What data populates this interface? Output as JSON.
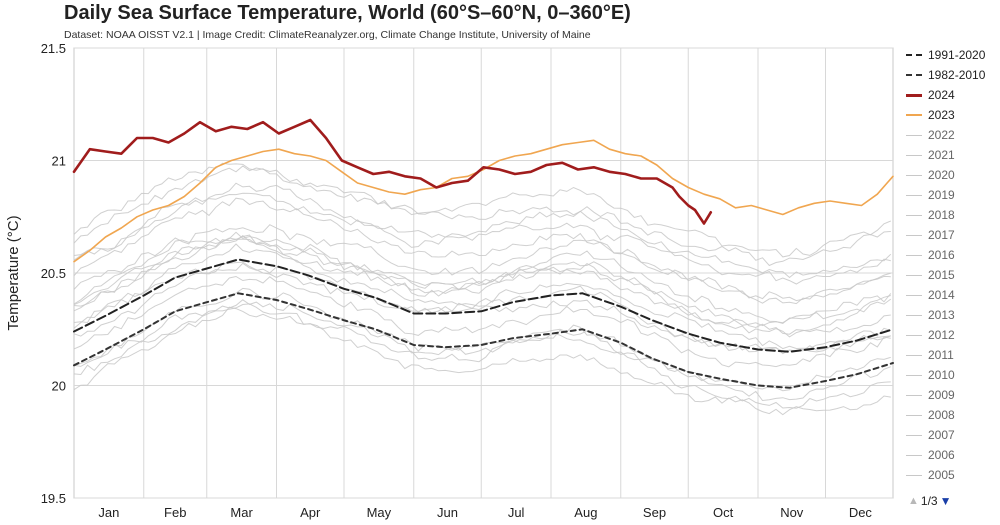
{
  "chart_data": {
    "type": "line",
    "title": "Daily Sea Surface Temperature, World (60°S–60°N, 0–360°E)",
    "subtitle": "Dataset: NOAA OISST V2.1 | Image Credit: ClimateReanalyzer.org, Climate Change Institute, University of Maine",
    "xlabel": "",
    "ylabel": "Temperature (°C)",
    "ylim": [
      19.5,
      21.5
    ],
    "yticks": [
      19.5,
      20,
      20.5,
      21,
      21.5
    ],
    "xlim": [
      1,
      365
    ],
    "months": [
      "Jan",
      "Feb",
      "Mar",
      "Apr",
      "May",
      "Jun",
      "Jul",
      "Aug",
      "Sep",
      "Oct",
      "Nov",
      "Dec"
    ],
    "grid": true,
    "legend_position": "right",
    "series": [
      {
        "name": "1991-2020",
        "style": "dashed-long",
        "color": "#222222",
        "x": [
          1,
          15,
          32,
          46,
          60,
          74,
          91,
          105,
          121,
          135,
          152,
          166,
          182,
          196,
          213,
          227,
          244,
          258,
          274,
          288,
          305,
          319,
          335,
          349,
          365
        ],
        "y": [
          20.24,
          20.31,
          20.4,
          20.48,
          20.52,
          20.56,
          20.53,
          20.49,
          20.43,
          20.39,
          20.32,
          20.32,
          20.33,
          20.37,
          20.4,
          20.41,
          20.35,
          20.29,
          20.23,
          20.19,
          20.16,
          20.15,
          20.17,
          20.2,
          20.25
        ]
      },
      {
        "name": "1982-2010",
        "style": "dashed-short",
        "color": "#333333",
        "x": [
          1,
          15,
          32,
          46,
          60,
          74,
          91,
          105,
          121,
          135,
          152,
          166,
          182,
          196,
          213,
          227,
          244,
          258,
          274,
          288,
          305,
          319,
          335,
          349,
          365
        ],
        "y": [
          20.09,
          20.16,
          20.25,
          20.33,
          20.37,
          20.41,
          20.38,
          20.34,
          20.29,
          20.25,
          20.18,
          20.17,
          20.18,
          20.21,
          20.23,
          20.25,
          20.19,
          20.12,
          20.06,
          20.03,
          20.0,
          19.99,
          20.02,
          20.05,
          20.1
        ]
      },
      {
        "name": "2024",
        "style": "solid-bold",
        "color": "#a01c1c",
        "x": [
          1,
          8,
          15,
          22,
          29,
          36,
          43,
          50,
          57,
          64,
          71,
          78,
          85,
          92,
          99,
          106,
          113,
          120,
          127,
          134,
          141,
          148,
          155,
          162,
          169,
          176,
          183,
          190,
          197,
          204,
          211,
          218,
          225,
          232,
          239,
          246,
          253,
          260,
          267,
          270,
          274,
          277,
          281,
          284
        ],
        "y": [
          20.95,
          21.05,
          21.04,
          21.03,
          21.1,
          21.1,
          21.08,
          21.12,
          21.17,
          21.13,
          21.15,
          21.14,
          21.17,
          21.12,
          21.15,
          21.18,
          21.1,
          21.0,
          20.97,
          20.94,
          20.95,
          20.93,
          20.92,
          20.88,
          20.9,
          20.91,
          20.97,
          20.96,
          20.94,
          20.95,
          20.98,
          20.99,
          20.96,
          20.97,
          20.95,
          20.94,
          20.92,
          20.92,
          20.88,
          20.84,
          20.8,
          20.78,
          20.72,
          20.77
        ]
      },
      {
        "name": "2023",
        "style": "solid",
        "color": "#f0a650",
        "x": [
          1,
          8,
          15,
          22,
          29,
          36,
          43,
          50,
          57,
          64,
          71,
          78,
          85,
          92,
          99,
          106,
          113,
          120,
          127,
          134,
          141,
          148,
          155,
          162,
          169,
          176,
          183,
          190,
          197,
          204,
          211,
          218,
          225,
          232,
          239,
          246,
          253,
          260,
          267,
          274,
          281,
          288,
          295,
          302,
          309,
          316,
          323,
          330,
          337,
          344,
          351,
          358,
          365
        ],
        "y": [
          20.55,
          20.6,
          20.66,
          20.7,
          20.75,
          20.78,
          20.8,
          20.84,
          20.9,
          20.97,
          21.0,
          21.02,
          21.04,
          21.05,
          21.03,
          21.02,
          21.0,
          20.95,
          20.9,
          20.88,
          20.86,
          20.85,
          20.87,
          20.88,
          20.92,
          20.93,
          20.96,
          21.0,
          21.02,
          21.03,
          21.05,
          21.07,
          21.08,
          21.09,
          21.05,
          21.03,
          21.02,
          20.98,
          20.92,
          20.88,
          20.85,
          20.83,
          20.79,
          20.8,
          20.78,
          20.76,
          20.79,
          20.81,
          20.82,
          20.81,
          20.8,
          20.85,
          20.93
        ]
      }
    ],
    "background_years": [
      "2022",
      "2021",
      "2020",
      "2019",
      "2018",
      "2017",
      "2016",
      "2015",
      "2014",
      "2013",
      "2012",
      "2011",
      "2010",
      "2009",
      "2008",
      "2007",
      "2006",
      "2005"
    ],
    "legend": [
      "1991-2020",
      "1982-2010",
      "2024",
      "2023",
      "2022",
      "2021",
      "2020",
      "2019",
      "2018",
      "2017",
      "2016",
      "2015",
      "2014",
      "2013",
      "2012",
      "2011",
      "2010",
      "2009",
      "2008",
      "2007",
      "2006",
      "2005"
    ],
    "colors": {
      "y2024": "#a01c1c",
      "y2023": "#f0a650",
      "background": "#c8c8c8",
      "climatology": "#222222",
      "grid": "#d8d8d8"
    }
  },
  "pager": {
    "label": "1/3",
    "up_icon": "triangle-up-icon",
    "down_icon": "triangle-down-icon"
  }
}
